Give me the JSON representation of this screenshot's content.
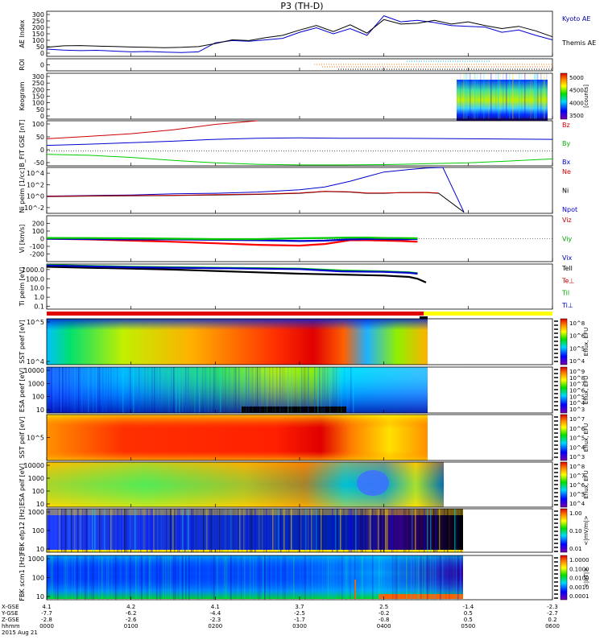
{
  "title": "P3 (TH-D)",
  "chart_data": {
    "type": "multi-panel time series / spectrogram",
    "date_label": "2015 Aug 21",
    "time_axis": {
      "row_labels": [
        "X-GSE",
        "Y-GSE",
        "Z-GSE",
        "hhmm"
      ],
      "ticks": [
        {
          "hhmm": "0000",
          "x": "4.1",
          "y": "-7.7",
          "z": "-2.8"
        },
        {
          "hhmm": "0100",
          "x": "4.2",
          "y": "-6.2",
          "z": "-2.6"
        },
        {
          "hhmm": "0200",
          "x": "4.1",
          "y": "-4.4",
          "z": "-2.3"
        },
        {
          "hhmm": "0300",
          "x": "3.7",
          "y": "-2.5",
          "z": "-1.7"
        },
        {
          "hhmm": "0400",
          "x": "2.5",
          "y": "-0.2",
          "z": "-0.8"
        },
        {
          "hhmm": "0500",
          "x": "-1.4",
          "y": "0.5",
          "z": "0.5"
        },
        {
          "hhmm": "0600",
          "x": "-2.3",
          "y": "-2.7",
          "z": "0.2"
        }
      ]
    },
    "panels": [
      {
        "id": "ae",
        "ylabel": "AE Index",
        "ylim": [
          0,
          300
        ],
        "ticks": [
          "300",
          "250",
          "200",
          "150",
          "100",
          "50",
          "0"
        ],
        "legend": [
          {
            "label": "Kyoto AE",
            "color": "#0000aa"
          },
          {
            "label": "Themis AE",
            "color": "#000000"
          }
        ],
        "series": [
          {
            "name": "Kyoto AE",
            "color": "#0000cc",
            "t": [
              0,
              0.2,
              0.4,
              0.6,
              0.8,
              1.0,
              1.2,
              1.4,
              1.6,
              1.8,
              2.0,
              2.2,
              2.4,
              2.6,
              2.8,
              3.0,
              3.2,
              3.4,
              3.6,
              3.8,
              4.0,
              4.2,
              4.4,
              4.6,
              4.8,
              5.0,
              5.2,
              5.4,
              5.6,
              5.8,
              6.0
            ],
            "v": [
              48,
              42,
              38,
              40,
              35,
              30,
              32,
              28,
              25,
              30,
              90,
              105,
              100,
              110,
              120,
              160,
              190,
              150,
              185,
              140,
              270,
              230,
              240,
              225,
              205,
              200,
              195,
              160,
              175,
              140,
              110
            ]
          },
          {
            "name": "Themis AE",
            "color": "#000000",
            "t": [
              0,
              0.2,
              0.4,
              0.6,
              0.8,
              1.0,
              1.2,
              1.4,
              1.6,
              1.8,
              2.0,
              2.2,
              2.4,
              2.6,
              2.8,
              3.0,
              3.2,
              3.4,
              3.6,
              3.8,
              4.0,
              4.2,
              4.4,
              4.6,
              4.8,
              5.0,
              5.2,
              5.4,
              5.6,
              5.8,
              6.0
            ],
            "v": [
              60,
              70,
              72,
              68,
              66,
              62,
              60,
              58,
              60,
              65,
              85,
              110,
              105,
              125,
              140,
              175,
              205,
              165,
              210,
              155,
              245,
              215,
              220,
              240,
              215,
              230,
              205,
              185,
              200,
              170,
              130
            ]
          }
        ]
      },
      {
        "id": "roi",
        "ylabel": "ROI",
        "ticks": [
          "0"
        ]
      },
      {
        "id": "keogram",
        "ylabel": "Keogram",
        "ylim": [
          0,
          300
        ],
        "ticks": [
          "300",
          "250",
          "200",
          "150",
          "100",
          "50",
          "0"
        ],
        "zlabel": "[counts]",
        "zticks": [
          "5000",
          "4500",
          "4000",
          "3500"
        ]
      },
      {
        "id": "bfit",
        "ylabel": "B_FIT GSE [nT]",
        "ylim": [
          -50,
          100
        ],
        "ticks": [
          "100",
          "50",
          "0",
          "-50"
        ],
        "legend": [
          {
            "label": "Bz",
            "color": "#cc0000"
          },
          {
            "label": "By",
            "color": "#00aa00"
          },
          {
            "label": "Bx",
            "color": "#0000cc"
          }
        ],
        "series": [
          {
            "name": "Bz",
            "color": "#cc0000",
            "t": [
              0,
              0.5,
              1,
              1.5,
              2,
              2.5
            ],
            "v": [
              40,
              48,
              57,
              70,
              88,
              100
            ]
          },
          {
            "name": "By",
            "color": "#00cc00",
            "t": [
              0,
              0.5,
              1,
              1.5,
              2,
              2.5,
              3,
              3.5,
              4,
              4.5,
              5,
              5.5,
              6
            ],
            "v": [
              -12,
              -15,
              -22,
              -32,
              -40,
              -45,
              -47,
              -47,
              -46,
              -43,
              -40,
              -34,
              -27
            ]
          },
          {
            "name": "Bx",
            "color": "#0000cc",
            "t": [
              0,
              0.5,
              1,
              1.5,
              2,
              2.5,
              3,
              3.5,
              4,
              4.5,
              5,
              5.5,
              6
            ],
            "v": [
              18,
              22,
              27,
              32,
              38,
              42,
              43,
              42,
              42,
              41,
              40,
              39,
              38
            ]
          }
        ]
      },
      {
        "id": "ni",
        "ylabel": "Ni peim [1/cc]",
        "ylim": [
          -3,
          5
        ],
        "ticks": [
          "10^4",
          "10^2",
          "10^0",
          "10^-2"
        ],
        "tickvals": [
          4,
          2,
          0,
          -2
        ],
        "legend": [
          {
            "label": "Ne",
            "color": "#cc0000"
          },
          {
            "label": "Ni",
            "color": "#000000"
          },
          {
            "label": "Npot",
            "color": "#0000cc"
          }
        ],
        "series": [
          {
            "name": "Npot",
            "color": "#0000cc",
            "t": [
              0,
              0.5,
              1,
              1.5,
              2,
              2.5,
              3,
              3.3,
              3.6,
              3.8,
              4.0,
              4.2,
              4.5,
              4.7,
              4.95
            ],
            "v": [
              0,
              0.1,
              0.2,
              0.4,
              0.5,
              0.7,
              1.1,
              1.6,
              2.6,
              3.4,
              4.2,
              4.5,
              4.9,
              5.0,
              -2.8
            ]
          },
          {
            "name": "Ni",
            "color": "#000000",
            "t": [
              0,
              0.5,
              1,
              1.5,
              2,
              2.5,
              3,
              3.3,
              3.6,
              3.8,
              4.0,
              4.2,
              4.5,
              4.65,
              4.95
            ],
            "v": [
              -0.1,
              0,
              0.05,
              0.1,
              0.2,
              0.3,
              0.5,
              0.8,
              0.7,
              0.5,
              0.5,
              0.6,
              0.6,
              0.5,
              -2.8
            ]
          },
          {
            "name": "Ne",
            "color": "#cc0000",
            "t": [
              0,
              0.5,
              1,
              1.5,
              2,
              2.5,
              3,
              3.3,
              3.6,
              3.8,
              4.0,
              4.2,
              4.5,
              4.65
            ],
            "v": [
              -0.05,
              0.05,
              0.1,
              0.15,
              0.25,
              0.35,
              0.55,
              0.85,
              0.75,
              0.55,
              0.55,
              0.6,
              0.65,
              0.55
            ]
          }
        ]
      },
      {
        "id": "vi",
        "ylabel": "Vi [km/s]",
        "ylim": [
          -300,
          300
        ],
        "ticks": [
          "200",
          "100",
          "0",
          "-100",
          "-200"
        ],
        "tickvals": [
          200,
          100,
          0,
          -100,
          -200
        ],
        "legend": [
          {
            "label": "Viz",
            "color": "#cc0000"
          },
          {
            "label": "Viy",
            "color": "#00aa00"
          },
          {
            "label": "Vix",
            "color": "#0000cc"
          }
        ],
        "series": [
          {
            "name": "Viz",
            "color": "#ff0000",
            "t": [
              0,
              0.5,
              1,
              1.5,
              2,
              2.5,
              3,
              3.3,
              3.6,
              3.8,
              4.0,
              4.2,
              4.4
            ],
            "v": [
              0,
              -10,
              -25,
              -40,
              -60,
              -80,
              -90,
              -70,
              -20,
              -20,
              -25,
              -30,
              -40
            ]
          },
          {
            "name": "Vix",
            "color": "#0000cc",
            "t": [
              0,
              0.5,
              1,
              1.5,
              2,
              2.5,
              3,
              3.3,
              3.6,
              3.8,
              4.0,
              4.2,
              4.4
            ],
            "v": [
              0,
              -5,
              -10,
              -10,
              -15,
              -20,
              -30,
              -25,
              -10,
              -5,
              -5,
              -10,
              -5
            ]
          },
          {
            "name": "Viy",
            "color": "#00cc00",
            "t": [
              0,
              0.5,
              1,
              1.5,
              2,
              2.5,
              3,
              3.3,
              3.6,
              3.8,
              4.0,
              4.2,
              4.4
            ],
            "v": [
              10,
              8,
              5,
              0,
              -5,
              -5,
              5,
              10,
              15,
              15,
              10,
              8,
              5
            ]
          }
        ]
      },
      {
        "id": "ti",
        "ylabel": "Ti peim [eV]",
        "ylim": [
          -1.3,
          3.6
        ],
        "ticks": [
          "1000.0",
          "100.0",
          "10.0",
          "1.0",
          "0.1"
        ],
        "tickvals": [
          3,
          2,
          1,
          0,
          -1
        ],
        "legend": [
          {
            "label": "Tell",
            "color": "#000000"
          },
          {
            "label": "Te⊥",
            "color": "#cc0000"
          },
          {
            "label": "Til",
            "color": "#00aa00"
          },
          {
            "label": "Ti⊥",
            "color": "#0000cc"
          }
        ],
        "series": [
          {
            "name": "Tell",
            "color": "#000000",
            "t": [
              0,
              0.5,
              1,
              1.5,
              2,
              2.5,
              3,
              3.5,
              4,
              4.3,
              4.4,
              4.5
            ],
            "v": [
              3.3,
              3.2,
              3.1,
              3.0,
              2.85,
              2.7,
              2.55,
              2.45,
              2.35,
              2.2,
              2.0,
              1.6
            ]
          },
          {
            "name": "Til",
            "color": "#00cc00",
            "t": [
              0,
              0.5,
              1,
              1.5,
              2,
              2.5,
              3,
              3.5,
              4,
              4.3,
              4.4
            ],
            "v": [
              3.5,
              3.4,
              3.3,
              3.25,
              3.2,
              3.15,
              3.1,
              2.9,
              2.8,
              2.7,
              2.6
            ]
          },
          {
            "name": "Ti⊥",
            "color": "#0000cc",
            "t": [
              0,
              0.5,
              1,
              1.5,
              2,
              2.5,
              3,
              3.5,
              4,
              4.3,
              4.4
            ],
            "v": [
              3.45,
              3.35,
              3.25,
              3.2,
              3.15,
              3.1,
              3.05,
              2.8,
              2.75,
              2.65,
              2.55
            ]
          }
        ]
      },
      {
        "id": "sst_e",
        "ylabel": "SST peef [eV]",
        "yticks": [
          "10^5",
          "10^4"
        ],
        "zlabel": "Eflux, EFU",
        "zticks": [
          "10^8",
          "10^6",
          "10^5",
          "10^4"
        ]
      },
      {
        "id": "esa_e",
        "ylabel": "ESA peef [eV]",
        "yticks": [
          "10000",
          "1000",
          "100",
          "10"
        ],
        "zlabel": "Eflux, EFU",
        "zticks": [
          "10^9",
          "10^8",
          "10^7",
          "10^6",
          "10^5",
          "10^4",
          "10^3"
        ]
      },
      {
        "id": "sst_i",
        "ylabel": "SST peif [eV]",
        "yticks": [
          "10^5"
        ],
        "zlabel": "Eflux, EFU",
        "zticks": [
          "10^7",
          "10^6",
          "10^5",
          "10^4",
          "10^3"
        ]
      },
      {
        "id": "esa_i",
        "ylabel": "ESA peif [eV]",
        "yticks": [
          "10000",
          "1000",
          "100",
          "10"
        ],
        "zlabel": "Eflux, EFU",
        "zticks": [
          "10^8",
          "10^7",
          "10^6",
          "10^5",
          "10^4"
        ]
      },
      {
        "id": "fbk_e",
        "ylabel": "FBK efp12 [Hz]",
        "yticks": [
          "1000",
          "100",
          "10"
        ],
        "zlabel": "<|mV/m|>",
        "zticks": [
          "1.00",
          "0.10",
          "0.01"
        ]
      },
      {
        "id": "fbk_b",
        "ylabel": "FBK scm1 [Hz]",
        "yticks": [
          "1000",
          "100",
          "10"
        ],
        "zlabel": "<|nT|>",
        "zticks": [
          "1.0000",
          "0.1000",
          "0.0100",
          "0.0010",
          "0.0001"
        ]
      }
    ]
  }
}
